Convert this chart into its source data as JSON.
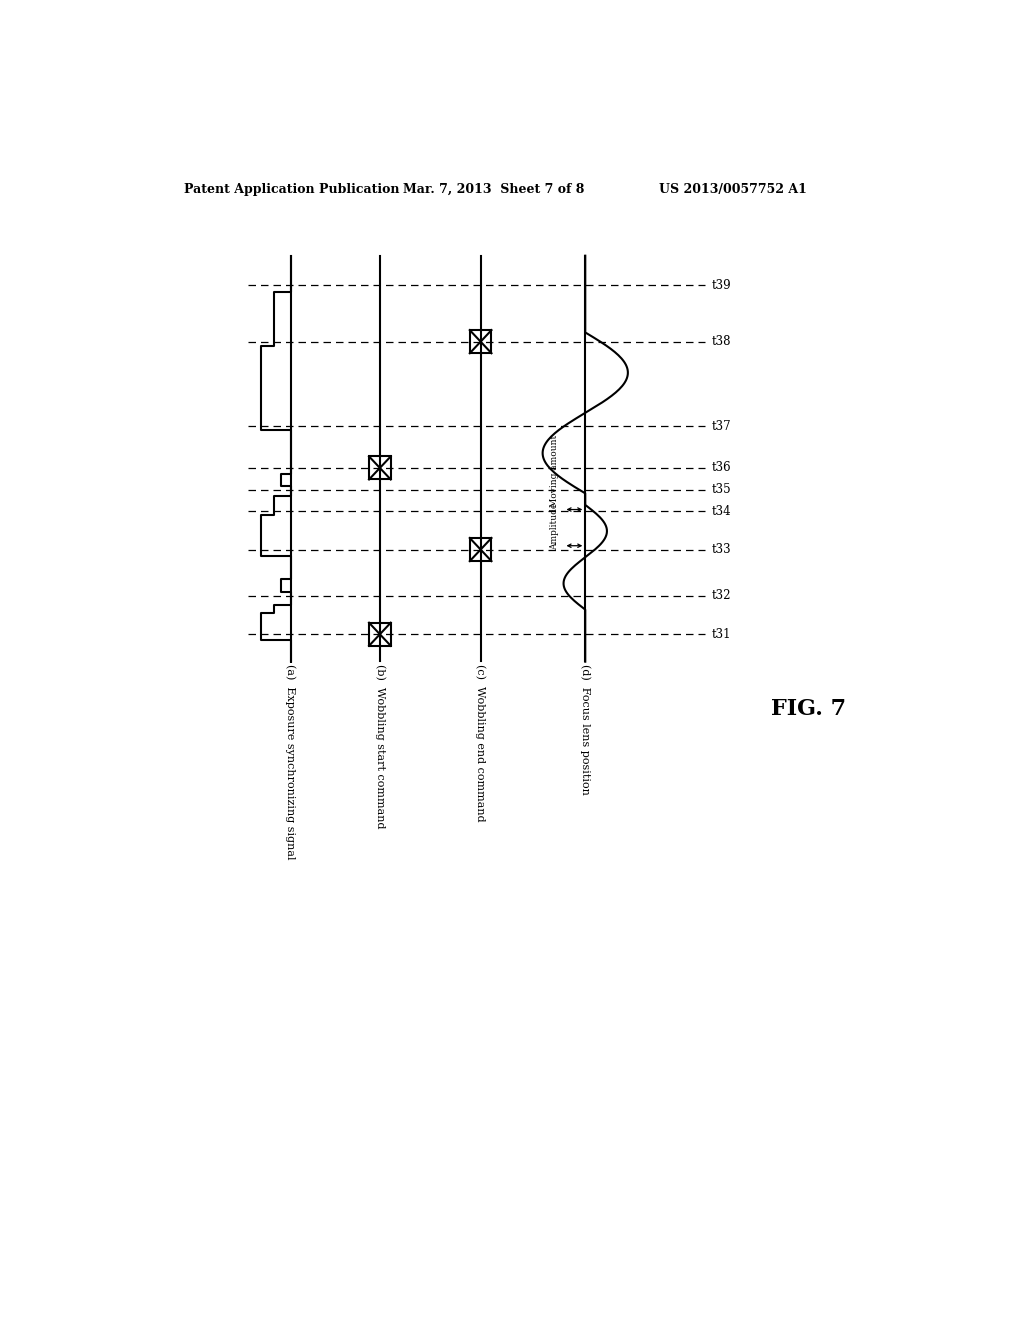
{
  "title_left": "Patent Application Publication",
  "title_mid": "Mar. 7, 2013  Sheet 7 of 8",
  "title_right": "US 2013/0057752 A1",
  "fig_label": "FIG. 7",
  "background_color": "#ffffff",
  "labels_rotated": [
    "(a)  Exposure synchronizing signal",
    "(b)  Wobbling start command",
    "(c)  Wobbling end command",
    "(d)  Focus lens position"
  ],
  "time_labels_top_to_bottom": [
    "t39",
    "t38",
    "t37",
    "t36",
    "t35",
    "t34",
    "t33",
    "t32",
    "t31"
  ],
  "annotation_moving": "Moving amount",
  "annotation_amplitude": "Amplitude"
}
